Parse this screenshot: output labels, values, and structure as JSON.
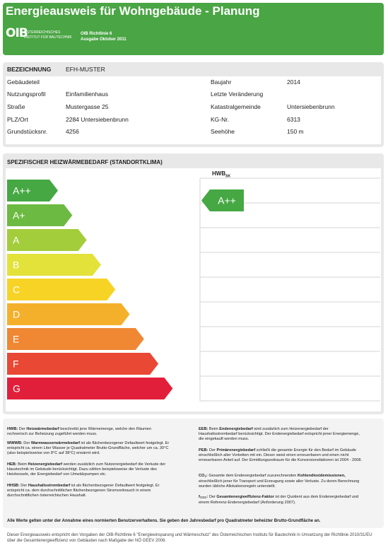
{
  "header": {
    "title": "Energieausweis für Wohngebäude - Planung",
    "logo": "OIB",
    "institute": "ÖSTERREICHISCHES INSTITUT FÜR BAUTECHNIK",
    "guideline": "OIB Richtlinie 6",
    "edition": "Ausgabe Oktober 2011"
  },
  "building": {
    "label": "BEZEICHNUNG",
    "name": "EFH-MUSTER",
    "left": [
      {
        "label": "Gebäudeteil"
      },
      {
        "label": "Nutzungsprofil",
        "value": "Einfamilienhaus"
      },
      {
        "label": "Straße",
        "value": "Mustergasse 25"
      },
      {
        "label": "PLZ/Ort",
        "value": "2284 Untersiebenbrunn"
      },
      {
        "label": "Grundstücksnr.",
        "value": "4256"
      }
    ],
    "right": [
      {
        "label": "Baujahr",
        "value": "2014"
      },
      {
        "label": "Letzte Veränderung"
      },
      {
        "label": "Katastralgemeinde",
        "value": "Untersiebenbrunn"
      },
      {
        "label": "KG-Nr.",
        "value": "6313"
      },
      {
        "label": "Seehöhe",
        "value": "150 m"
      }
    ]
  },
  "rating": {
    "title": "SPEZIFISCHER HEIZWÄRMEBEDARF (STANDORTKLIMA)",
    "column": {
      "main": "HWB",
      "sub": "SK"
    },
    "classes": [
      {
        "label": "A++",
        "color": "#45a843"
      },
      {
        "label": "A+",
        "color": "#6cba41"
      },
      {
        "label": "A",
        "color": "#a3cd3b"
      },
      {
        "label": "B",
        "color": "#e2e23a"
      },
      {
        "label": "C",
        "color": "#f7d325"
      },
      {
        "label": "D",
        "color": "#f5b02b"
      },
      {
        "label": "E",
        "color": "#ef8733"
      },
      {
        "label": "F",
        "color": "#e84834"
      },
      {
        "label": "G",
        "color": "#e21f3b"
      }
    ],
    "indicator": "A++"
  },
  "notes": {
    "left": [
      {
        "parts": [
          {
            "text": "HWB:",
            "style": "b"
          },
          {
            "text": " Der "
          },
          {
            "text": "Heizwärmebedarf",
            "style": "b"
          },
          {
            "text": " beschreibt jene Wärmemenge, welche den Räumen rechnerisch zur Beheizung zugeführt werden muss."
          }
        ]
      },
      {
        "parts": [
          {
            "text": "WWWB:",
            "style": "b"
          },
          {
            "text": " Der "
          },
          {
            "text": "Warmwasserwärmebedarf",
            "style": "b"
          },
          {
            "text": " ist als flächenbezogener Defaultwert festgelegt. Er entspricht ca. einem Liter Wasser je Quadratmeter Brutto-Grundfläche, welcher um ca. 30°C (also beispielsweise von 8°C auf 38°C) erwärmt wird."
          }
        ]
      },
      {
        "parts": [
          {
            "text": "HEB:",
            "style": "b"
          },
          {
            "text": " Beim "
          },
          {
            "text": "Heizenergiebedarf",
            "style": "b"
          },
          {
            "text": " werden zusätzlich zum Nutzenergiebedarf die Verluste der Haustechnik im Gebäude berücksichtigt. Dazu zählen beispielsweise die Verluste des Heizkessels, der Energiebedarf von Umwälzpumpen etc."
          }
        ]
      },
      {
        "parts": [
          {
            "text": "HHSB:",
            "style": "b"
          },
          {
            "text": " Der "
          },
          {
            "text": "Haushaltsstrombedarf",
            "style": "b"
          },
          {
            "text": " ist als flächenbezogener Defaultwert festgelegt. Er entspricht ca. dem durchschnittlichen flächenbezogenen Stromverbrauch in einem durchschnittlichen österreichischen Haushalt."
          }
        ]
      }
    ],
    "right": [
      {
        "parts": [
          {
            "text": "EEB:",
            "style": "b"
          },
          {
            "text": " Beim "
          },
          {
            "text": "Endenergiebedarf",
            "style": "b"
          },
          {
            "text": " wird zusätzlich zum Heizenergiebedarf der Haushaltsstrombedarf berücksichtigt. Der Endenergiebedarf entspricht jener Energiemenge, die eingekauft werden muss."
          }
        ]
      },
      {
        "parts": [
          {
            "text": "PEB:",
            "style": "b"
          },
          {
            "text": " Der "
          },
          {
            "text": "Primärenergiebedarf",
            "style": "b"
          },
          {
            "text": " schließt die gesamte Energie für den Bedarf im Gebäude einschließlich aller Vorketten mit ein. Dieser weist einen erneuerbaren und einen nicht erneuerbaren Anteil auf. Der Ermittlungszeitraum für die Konversionsfaktoren ist 2004 - 2008."
          }
        ]
      },
      {
        "parts": [
          {
            "text": "CO",
            "style": "b"
          },
          {
            "text": "2",
            "style": "sub"
          },
          {
            "text": ":",
            "style": "b"
          },
          {
            "text": " Gesamte dem Endenergiebedarf zuzurechnenden "
          },
          {
            "text": "Kohlendioxidemissionen,",
            "style": "b"
          },
          {
            "text": " einschließlich jener für Transport und Erzeugung sowie aller Verluste. Zu deren Berechnung wurden übliche Allokationsregeln unterstellt."
          }
        ]
      },
      {
        "parts": [
          {
            "text": "f",
            "style": "b"
          },
          {
            "text": "GEE",
            "style": "sub"
          },
          {
            "text": ":",
            "style": "b"
          },
          {
            "text": " Der "
          },
          {
            "text": "Gesamtenergieeffizienz-Faktor",
            "style": "b"
          },
          {
            "text": " ist der Quotient aus dem Endenergiebedarf und einem Referenz-Endenergiebedarf (Anforderung 2007)."
          }
        ]
      }
    ],
    "assumption": "Alle Werte gelten unter der Annahme eines normierten Benutzerverhaltens. Sie geben den Jahresbedarf pro Quadratmeter beheizter Brutto-Grundfläche an."
  },
  "footer": "Dieser Energieausweis entspricht den Vorgaben der OIB-Richtlinie 6 \"Energieeinsparung und Wärmeschutz\" des Österreichischen Instituts für Bautechnik in Umsetzung der Richtlinie 2010/31/EU über die Gesamtenergieeffizienz von Gebäuden nach Maßgabe der NÖ GEEV 2008."
}
